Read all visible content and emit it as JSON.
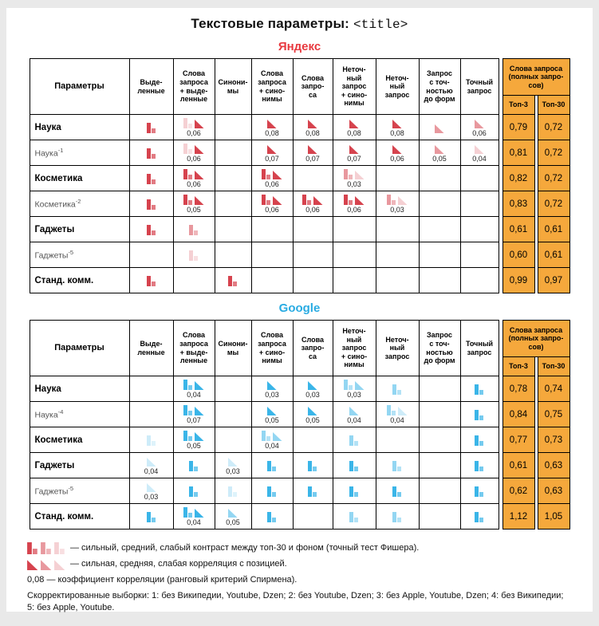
{
  "page": {
    "title_prefix": "Текстовые параметры: ",
    "title_code": "<title>"
  },
  "colors": {
    "top_columns": "#f5a83c",
    "yandex_icon": "#d6434e",
    "google_icon": "#3ab5e8",
    "yandex_title": "#e8393f",
    "google_title": "#29abe2",
    "legend_icon": "#d6434e"
  },
  "table": {
    "param_header": "Параметры",
    "col_headers": [
      "Выде-\nленные",
      "Слова\nзапроса\n+ выде-\nленные",
      "Синони-\nмы",
      "Слова\nзапроса\n+ сино-\nнимы",
      "Слова\nзапро-\nса",
      "Неточ-\nный\nзапрос\n+ сино-\nнимы",
      "Неточ-\nный\nзапрос",
      "Запрос\nс точ-\nностью\nдо форм",
      "Точный\nзапрос"
    ],
    "group_header": "Слова запроса\n(полных запро-\nсов)",
    "top3_header": "Топ-3",
    "top30_header": "Топ-30"
  },
  "sections": [
    {
      "id": "yandex",
      "title": "Яндекс",
      "title_color": "#e8393f",
      "icon_color": "#d6434e",
      "rows": [
        {
          "label": "Наука",
          "sup": "",
          "bold": true,
          "cells": [
            {
              "icons": [
                "bar-strong"
              ]
            },
            {
              "icons": [
                "bar-weak",
                "tri-strong"
              ],
              "value": "0,06"
            },
            {},
            {
              "icons": [
                "tri-strong"
              ],
              "value": "0,08"
            },
            {
              "icons": [
                "tri-strong"
              ],
              "value": "0,08"
            },
            {
              "icons": [
                "tri-strong"
              ],
              "value": "0,08"
            },
            {
              "icons": [
                "tri-strong"
              ],
              "value": "0,08"
            },
            {
              "icons": [
                "tri-medium"
              ]
            },
            {
              "icons": [
                "tri-medium"
              ],
              "value": "0,06"
            }
          ],
          "top3": "0,79",
          "top30": "0,72"
        },
        {
          "label": "Наука",
          "sup": "-1",
          "bold": false,
          "cells": [
            {
              "icons": [
                "bar-strong"
              ]
            },
            {
              "icons": [
                "bar-weak",
                "tri-strong"
              ],
              "value": "0,06"
            },
            {},
            {
              "icons": [
                "tri-strong"
              ],
              "value": "0,07"
            },
            {
              "icons": [
                "tri-strong"
              ],
              "value": "0,07"
            },
            {
              "icons": [
                "tri-strong"
              ],
              "value": "0,07"
            },
            {
              "icons": [
                "tri-strong"
              ],
              "value": "0,06"
            },
            {
              "icons": [
                "tri-medium"
              ],
              "value": "0,05"
            },
            {
              "icons": [
                "tri-weak"
              ],
              "value": "0,04"
            }
          ],
          "top3": "0,81",
          "top30": "0,72"
        },
        {
          "label": "Косметика",
          "sup": "",
          "bold": true,
          "cells": [
            {
              "icons": [
                "bar-strong"
              ]
            },
            {
              "icons": [
                "bar-strong",
                "tri-strong"
              ],
              "value": "0,06"
            },
            {},
            {
              "icons": [
                "bar-strong",
                "tri-strong"
              ],
              "value": "0,06"
            },
            {},
            {
              "icons": [
                "bar-medium",
                "tri-weak"
              ],
              "value": "0,03"
            },
            {},
            {},
            {}
          ],
          "top3": "0,82",
          "top30": "0,72"
        },
        {
          "label": "Косметика",
          "sup": "-2",
          "bold": false,
          "cells": [
            {
              "icons": [
                "bar-strong"
              ]
            },
            {
              "icons": [
                "bar-strong",
                "tri-strong"
              ],
              "value": "0,05"
            },
            {},
            {
              "icons": [
                "bar-strong",
                "tri-strong"
              ],
              "value": "0,06"
            },
            {
              "icons": [
                "bar-strong",
                "tri-strong"
              ],
              "value": "0,06"
            },
            {
              "icons": [
                "bar-strong",
                "tri-strong"
              ],
              "value": "0,06"
            },
            {
              "icons": [
                "bar-medium",
                "tri-weak"
              ],
              "value": "0,03"
            },
            {},
            {}
          ],
          "top3": "0,83",
          "top30": "0,72"
        },
        {
          "label": "Гаджеты",
          "sup": "",
          "bold": true,
          "cells": [
            {
              "icons": [
                "bar-strong"
              ]
            },
            {
              "icons": [
                "bar-medium"
              ]
            },
            {},
            {},
            {},
            {},
            {},
            {},
            {}
          ],
          "top3": "0,61",
          "top30": "0,61"
        },
        {
          "label": "Гаджеты",
          "sup": "-5",
          "bold": false,
          "cells": [
            {},
            {
              "icons": [
                "bar-weak"
              ]
            },
            {},
            {},
            {},
            {},
            {},
            {},
            {}
          ],
          "top3": "0,60",
          "top30": "0,61"
        },
        {
          "label": "Станд. комм.",
          "sup": "",
          "bold": true,
          "cells": [
            {
              "icons": [
                "bar-strong"
              ]
            },
            {},
            {
              "icons": [
                "bar-strong"
              ]
            },
            {},
            {},
            {},
            {},
            {},
            {}
          ],
          "top3": "0,99",
          "top30": "0,97"
        }
      ]
    },
    {
      "id": "google",
      "title": "Google",
      "title_color": "#29abe2",
      "icon_color": "#3ab5e8",
      "rows": [
        {
          "label": "Наука",
          "sup": "",
          "bold": true,
          "cells": [
            {},
            {
              "icons": [
                "bar-strong",
                "tri-strong"
              ],
              "value": "0,04"
            },
            {},
            {
              "icons": [
                "tri-strong"
              ],
              "value": "0,03"
            },
            {
              "icons": [
                "tri-strong"
              ],
              "value": "0,03"
            },
            {
              "icons": [
                "bar-medium",
                "tri-medium"
              ],
              "value": "0,03"
            },
            {
              "icons": [
                "bar-medium"
              ]
            },
            {},
            {
              "icons": [
                "bar-strong"
              ]
            }
          ],
          "top3": "0,78",
          "top30": "0,74"
        },
        {
          "label": "Наука",
          "sup": "-4",
          "bold": false,
          "cells": [
            {},
            {
              "icons": [
                "bar-strong",
                "tri-strong"
              ],
              "value": "0,07"
            },
            {},
            {
              "icons": [
                "tri-strong"
              ],
              "value": "0,05"
            },
            {
              "icons": [
                "tri-strong"
              ],
              "value": "0,05"
            },
            {
              "icons": [
                "tri-medium"
              ],
              "value": "0,04"
            },
            {
              "icons": [
                "bar-medium",
                "tri-weak"
              ],
              "value": "0,04"
            },
            {},
            {
              "icons": [
                "bar-strong"
              ]
            }
          ],
          "top3": "0,84",
          "top30": "0,75"
        },
        {
          "label": "Косметика",
          "sup": "",
          "bold": true,
          "cells": [
            {
              "icons": [
                "bar-weak"
              ]
            },
            {
              "icons": [
                "bar-strong",
                "tri-strong"
              ],
              "value": "0,05"
            },
            {},
            {
              "icons": [
                "bar-medium",
                "tri-medium"
              ],
              "value": "0,04"
            },
            {},
            {
              "icons": [
                "bar-medium"
              ]
            },
            {},
            {},
            {
              "icons": [
                "bar-strong"
              ]
            }
          ],
          "top3": "0,77",
          "top30": "0,73"
        },
        {
          "label": "Гаджеты",
          "sup": "",
          "bold": true,
          "cells": [
            {
              "icons": [
                "tri-weak"
              ],
              "value": "0,04"
            },
            {
              "icons": [
                "bar-strong"
              ]
            },
            {
              "icons": [
                "tri-weak"
              ],
              "value": "0,03"
            },
            {
              "icons": [
                "bar-strong"
              ]
            },
            {
              "icons": [
                "bar-strong"
              ]
            },
            {
              "icons": [
                "bar-strong"
              ]
            },
            {
              "icons": [
                "bar-medium"
              ]
            },
            {},
            {
              "icons": [
                "bar-strong"
              ]
            }
          ],
          "top3": "0,61",
          "top30": "0,63"
        },
        {
          "label": "Гаджеты",
          "sup": "-5",
          "bold": false,
          "cells": [
            {
              "icons": [
                "tri-weak"
              ],
              "value": "0,03"
            },
            {
              "icons": [
                "bar-strong"
              ]
            },
            {
              "icons": [
                "bar-weak"
              ]
            },
            {
              "icons": [
                "bar-strong"
              ]
            },
            {
              "icons": [
                "bar-strong"
              ]
            },
            {
              "icons": [
                "bar-strong"
              ]
            },
            {
              "icons": [
                "bar-strong"
              ]
            },
            {},
            {
              "icons": [
                "bar-strong"
              ]
            }
          ],
          "top3": "0,62",
          "top30": "0,63"
        },
        {
          "label": "Станд. комм.",
          "sup": "",
          "bold": true,
          "cells": [
            {
              "icons": [
                "bar-strong"
              ]
            },
            {
              "icons": [
                "bar-strong",
                "tri-strong"
              ],
              "value": "0,04"
            },
            {
              "icons": [
                "tri-medium"
              ],
              "value": "0,05"
            },
            {
              "icons": [
                "bar-strong"
              ]
            },
            {},
            {
              "icons": [
                "bar-medium"
              ]
            },
            {
              "icons": [
                "bar-medium"
              ]
            },
            {},
            {
              "icons": [
                "bar-strong"
              ]
            }
          ],
          "top3": "1,12",
          "top30": "1,05"
        }
      ]
    }
  ],
  "legend": {
    "contrast_icons": [
      "bar-strong",
      "bar-medium",
      "bar-weak"
    ],
    "contrast_text": "— сильный, средний, слабый контраст между топ-30 и фоном (точный тест Фишера).",
    "correlation_icons": [
      "tri-strong",
      "tri-medium",
      "tri-weak"
    ],
    "correlation_text": "— сильная, средняя, слабая корреляция с позицией.",
    "coefficient_text": "0,08 — коэффициент корреляции (ранговый критерий Спирмена).",
    "samples_text": "Скорректированные выборки: 1: без Википедии, Youtube, Dzen; 2: без Youtube, Dzen; 3: без Apple, Youtube, Dzen; 4: без Википедии; 5: без Apple, Youtube."
  }
}
